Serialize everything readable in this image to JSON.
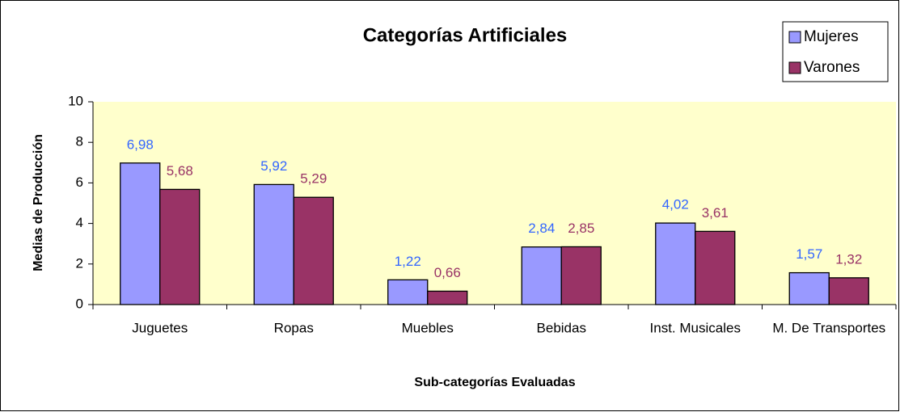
{
  "chart_data": {
    "type": "bar",
    "title": "Categorías Artificiales",
    "x_label": "Sub-categorías Evaluadas",
    "y_label": "Medias de Producción",
    "categories": [
      "Juguetes",
      "Ropas",
      "Muebles",
      "Bebidas",
      "Inst. Musicales",
      "M. De Transportes"
    ],
    "series": [
      {
        "name": "Mujeres",
        "color": "#9999ff",
        "label_color": "#3366ff",
        "values": [
          6.98,
          5.92,
          1.22,
          2.84,
          4.02,
          1.57
        ],
        "value_labels": [
          "6,98",
          "5,92",
          "1,22",
          "2,84",
          "4,02",
          "1,57"
        ]
      },
      {
        "name": "Varones",
        "color": "#993366",
        "label_color": "#993366",
        "values": [
          5.68,
          5.29,
          0.66,
          2.85,
          3.61,
          1.32
        ],
        "value_labels": [
          "5,68",
          "5,29",
          "0,66",
          "2,85",
          "3,61",
          "1,32"
        ]
      }
    ],
    "ylim": [
      0,
      10
    ],
    "yticks": [
      0,
      2,
      4,
      6,
      8,
      10
    ],
    "legend": "top-right",
    "plot_background": "#ffffcc"
  }
}
